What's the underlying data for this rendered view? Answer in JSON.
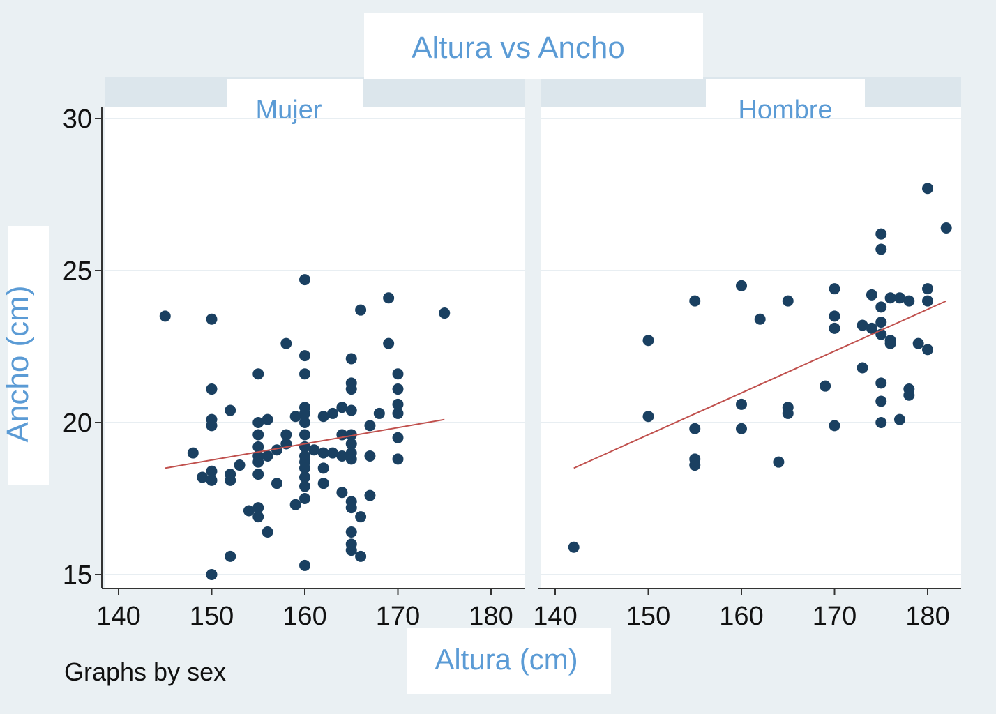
{
  "chart_data": {
    "type": "scatter",
    "title": "Altura vs Ancho",
    "xlabel": "Altura (cm)",
    "ylabel": "Ancho (cm)",
    "note": "Graphs by sex",
    "xlim": [
      138,
      183
    ],
    "ylim": [
      15,
      30
    ],
    "xticks": [
      140,
      150,
      160,
      170,
      180
    ],
    "yticks": [
      15,
      20,
      25,
      30
    ],
    "grid": true,
    "colors": {
      "point": "#1a4061",
      "fit": "#c0504d",
      "title": "#5b9bd5"
    },
    "panels": [
      {
        "name": "Mujer",
        "points": [
          [
            145,
            23.5
          ],
          [
            148,
            19.0
          ],
          [
            149,
            18.2
          ],
          [
            150,
            23.4
          ],
          [
            150,
            21.1
          ],
          [
            150,
            20.1
          ],
          [
            150,
            19.9
          ],
          [
            150,
            18.4
          ],
          [
            150,
            18.1
          ],
          [
            152,
            20.4
          ],
          [
            152,
            18.3
          ],
          [
            152,
            18.1
          ],
          [
            152,
            15.6
          ],
          [
            150,
            15.0
          ],
          [
            153,
            18.6
          ],
          [
            154,
            17.1
          ],
          [
            155,
            21.6
          ],
          [
            155,
            20.0
          ],
          [
            155,
            19.6
          ],
          [
            155,
            19.2
          ],
          [
            155,
            18.9
          ],
          [
            155,
            18.7
          ],
          [
            155,
            18.3
          ],
          [
            155,
            17.2
          ],
          [
            155,
            16.9
          ],
          [
            156,
            20.1
          ],
          [
            156,
            18.9
          ],
          [
            156,
            16.4
          ],
          [
            157,
            18.0
          ],
          [
            157,
            19.1
          ],
          [
            158,
            22.6
          ],
          [
            158,
            19.6
          ],
          [
            158,
            19.3
          ],
          [
            159,
            20.2
          ],
          [
            159,
            17.3
          ],
          [
            160,
            24.7
          ],
          [
            160,
            22.2
          ],
          [
            160,
            21.6
          ],
          [
            160,
            20.5
          ],
          [
            160,
            20.3
          ],
          [
            160,
            20.0
          ],
          [
            160,
            19.6
          ],
          [
            160,
            19.2
          ],
          [
            160,
            18.9
          ],
          [
            160,
            18.7
          ],
          [
            160,
            18.5
          ],
          [
            160,
            18.2
          ],
          [
            160,
            17.9
          ],
          [
            160,
            17.5
          ],
          [
            160,
            15.3
          ],
          [
            161,
            19.1
          ],
          [
            162,
            20.2
          ],
          [
            162,
            19.0
          ],
          [
            162,
            18.5
          ],
          [
            162,
            18.0
          ],
          [
            163,
            20.3
          ],
          [
            163,
            19.0
          ],
          [
            164,
            20.5
          ],
          [
            164,
            19.6
          ],
          [
            164,
            18.9
          ],
          [
            164,
            17.7
          ],
          [
            165,
            22.1
          ],
          [
            165,
            21.3
          ],
          [
            165,
            21.1
          ],
          [
            165,
            20.4
          ],
          [
            165,
            19.6
          ],
          [
            165,
            19.3
          ],
          [
            165,
            19.0
          ],
          [
            165,
            18.8
          ],
          [
            165,
            17.4
          ],
          [
            165,
            17.2
          ],
          [
            165,
            16.4
          ],
          [
            165,
            16.0
          ],
          [
            165,
            15.8
          ],
          [
            166,
            23.7
          ],
          [
            166,
            16.9
          ],
          [
            166,
            15.6
          ],
          [
            167,
            19.9
          ],
          [
            167,
            18.9
          ],
          [
            167,
            17.6
          ],
          [
            168,
            20.3
          ],
          [
            169,
            24.1
          ],
          [
            169,
            22.6
          ],
          [
            170,
            21.6
          ],
          [
            170,
            21.1
          ],
          [
            170,
            20.6
          ],
          [
            170,
            20.3
          ],
          [
            170,
            19.5
          ],
          [
            170,
            18.8
          ],
          [
            175,
            23.6
          ]
        ],
        "fit": [
          [
            145,
            18.5
          ],
          [
            175,
            20.1
          ]
        ]
      },
      {
        "name": "Hombre",
        "points": [
          [
            142,
            15.9
          ],
          [
            150,
            22.7
          ],
          [
            150,
            20.2
          ],
          [
            155,
            24.0
          ],
          [
            155,
            19.8
          ],
          [
            155,
            18.8
          ],
          [
            155,
            18.6
          ],
          [
            160,
            24.5
          ],
          [
            160,
            20.6
          ],
          [
            160,
            19.8
          ],
          [
            162,
            23.4
          ],
          [
            164,
            18.7
          ],
          [
            165,
            24.0
          ],
          [
            165,
            20.5
          ],
          [
            165,
            20.3
          ],
          [
            169,
            21.2
          ],
          [
            170,
            24.4
          ],
          [
            170,
            23.5
          ],
          [
            170,
            23.1
          ],
          [
            170,
            19.9
          ],
          [
            173,
            23.2
          ],
          [
            173,
            21.8
          ],
          [
            174,
            24.2
          ],
          [
            174,
            23.1
          ],
          [
            175,
            26.2
          ],
          [
            175,
            25.7
          ],
          [
            175,
            23.8
          ],
          [
            175,
            23.3
          ],
          [
            175,
            22.9
          ],
          [
            175,
            21.3
          ],
          [
            175,
            20.7
          ],
          [
            175,
            20.0
          ],
          [
            176,
            24.1
          ],
          [
            176,
            22.7
          ],
          [
            176,
            22.6
          ],
          [
            177,
            24.1
          ],
          [
            177,
            20.1
          ],
          [
            178,
            24.0
          ],
          [
            178,
            21.1
          ],
          [
            178,
            20.9
          ],
          [
            179,
            22.6
          ],
          [
            180,
            27.7
          ],
          [
            180,
            24.4
          ],
          [
            180,
            24.0
          ],
          [
            180,
            22.4
          ],
          [
            182,
            26.4
          ]
        ],
        "fit": [
          [
            142,
            18.5
          ],
          [
            182,
            24.0
          ]
        ]
      }
    ]
  }
}
